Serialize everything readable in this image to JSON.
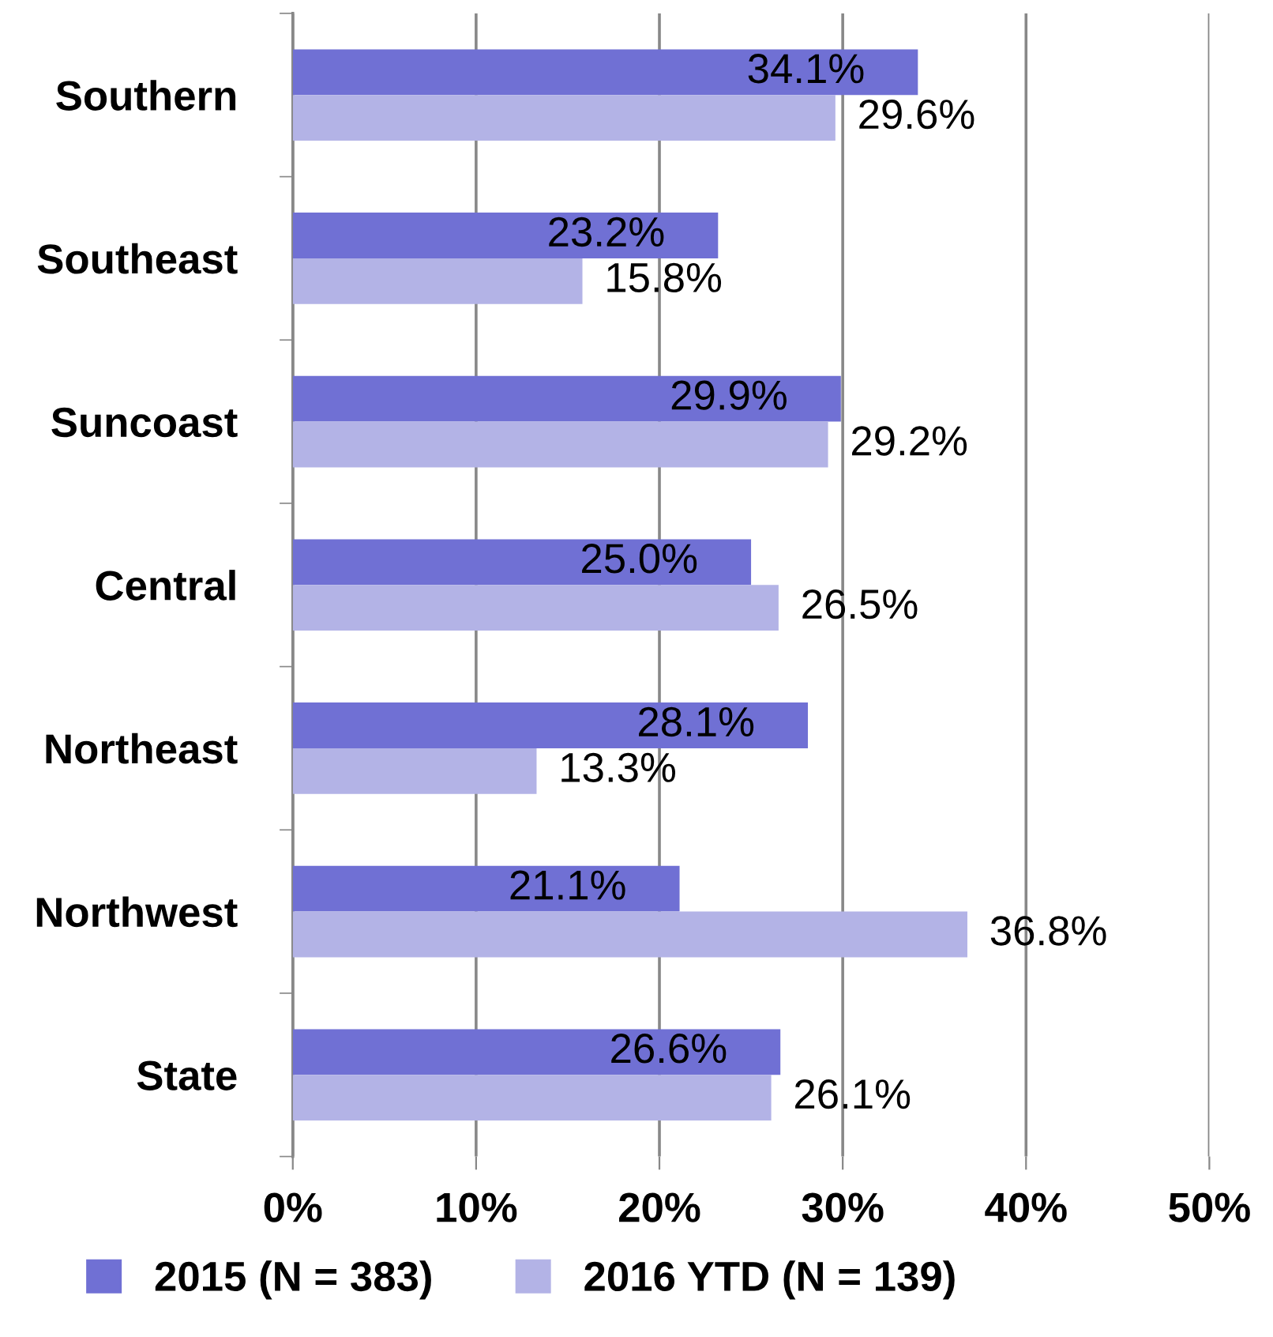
{
  "chart_data": {
    "type": "bar",
    "orientation": "horizontal",
    "categories": [
      "Southern",
      "Southeast",
      "Suncoast",
      "Central",
      "Northeast",
      "Northwest",
      "State"
    ],
    "series": [
      {
        "name": "2015 (N = 383)",
        "color": "#7070d4",
        "values": [
          34.1,
          23.2,
          29.9,
          25.0,
          28.1,
          21.1,
          26.6
        ],
        "value_labels": [
          "34.1%",
          "23.2%",
          "29.9%",
          "25.0%",
          "28.1%",
          "21.1%",
          "26.6%"
        ]
      },
      {
        "name": "2016 YTD (N = 139)",
        "color": "#b3b3e6",
        "values": [
          29.6,
          15.8,
          29.2,
          26.5,
          13.3,
          36.8,
          26.1
        ],
        "value_labels": [
          "29.6%",
          "15.8%",
          "29.2%",
          "26.5%",
          "13.3%",
          "36.8%",
          "26.1%"
        ]
      }
    ],
    "xlim": [
      0,
      50
    ],
    "xticks": [
      {
        "value": 0,
        "label": "0%"
      },
      {
        "value": 10,
        "label": "10%"
      },
      {
        "value": 20,
        "label": "20%"
      },
      {
        "value": 30,
        "label": "30%"
      },
      {
        "value": 40,
        "label": "40%"
      },
      {
        "value": 50,
        "label": "50%"
      }
    ],
    "grid": "x",
    "legend": "bottom"
  }
}
